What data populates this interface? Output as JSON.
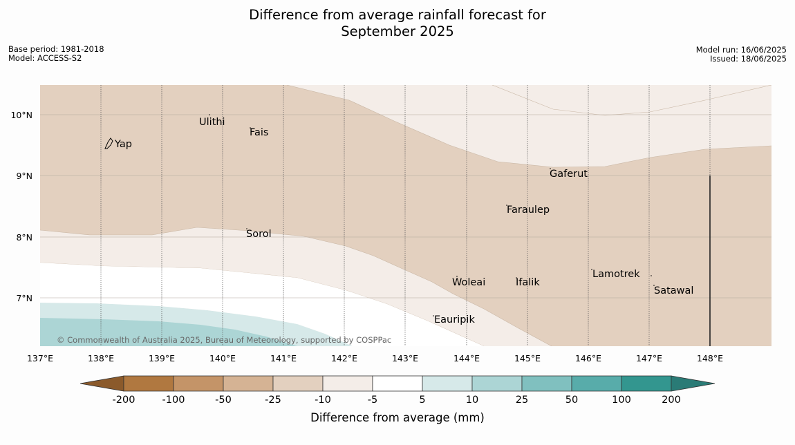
{
  "title_line1": "Difference from average rainfall forecast for",
  "title_line2": "September 2025",
  "base_period": "Base period: 1981-2018",
  "model": "Model: ACCESS-S2",
  "model_run": "Model run: 16/06/2025",
  "issued": "Issued: 18/06/2025",
  "copyright": "© Commonwealth of Australia 2025, Bureau of Meteorology, supported by COSPPac",
  "lon_ticks": [
    "137°E",
    "138°E",
    "139°E",
    "140°E",
    "141°E",
    "142°E",
    "143°E",
    "144°E",
    "145°E",
    "146°E",
    "147°E",
    "148°E"
  ],
  "lat_ticks": [
    "10°N",
    "9°N",
    "8°N",
    "7°N"
  ],
  "places": [
    {
      "name": "Yap"
    },
    {
      "name": "Ulithi"
    },
    {
      "name": "Fais"
    },
    {
      "name": "Sorol"
    },
    {
      "name": "Gaferut"
    },
    {
      "name": "Faraulep"
    },
    {
      "name": "Woleai"
    },
    {
      "name": "Ifalik"
    },
    {
      "name": "Lamotrek"
    },
    {
      "name": "Satawal"
    },
    {
      "name": "Eauripik"
    }
  ],
  "legend": {
    "title": "Difference from average (mm)",
    "labels": [
      "-200",
      "-100",
      "-50",
      "-25",
      "-10",
      "-5",
      "5",
      "10",
      "25",
      "50",
      "100",
      "200"
    ],
    "colors": [
      "#8b5a2b",
      "#b07840",
      "#c49468",
      "#d5b394",
      "#e3d0bf",
      "#f4ede8",
      "#ffffff",
      "#d6e9e9",
      "#acd5d5",
      "#80c0bf",
      "#58acaa",
      "#33968f",
      "#2a7b76"
    ]
  }
}
